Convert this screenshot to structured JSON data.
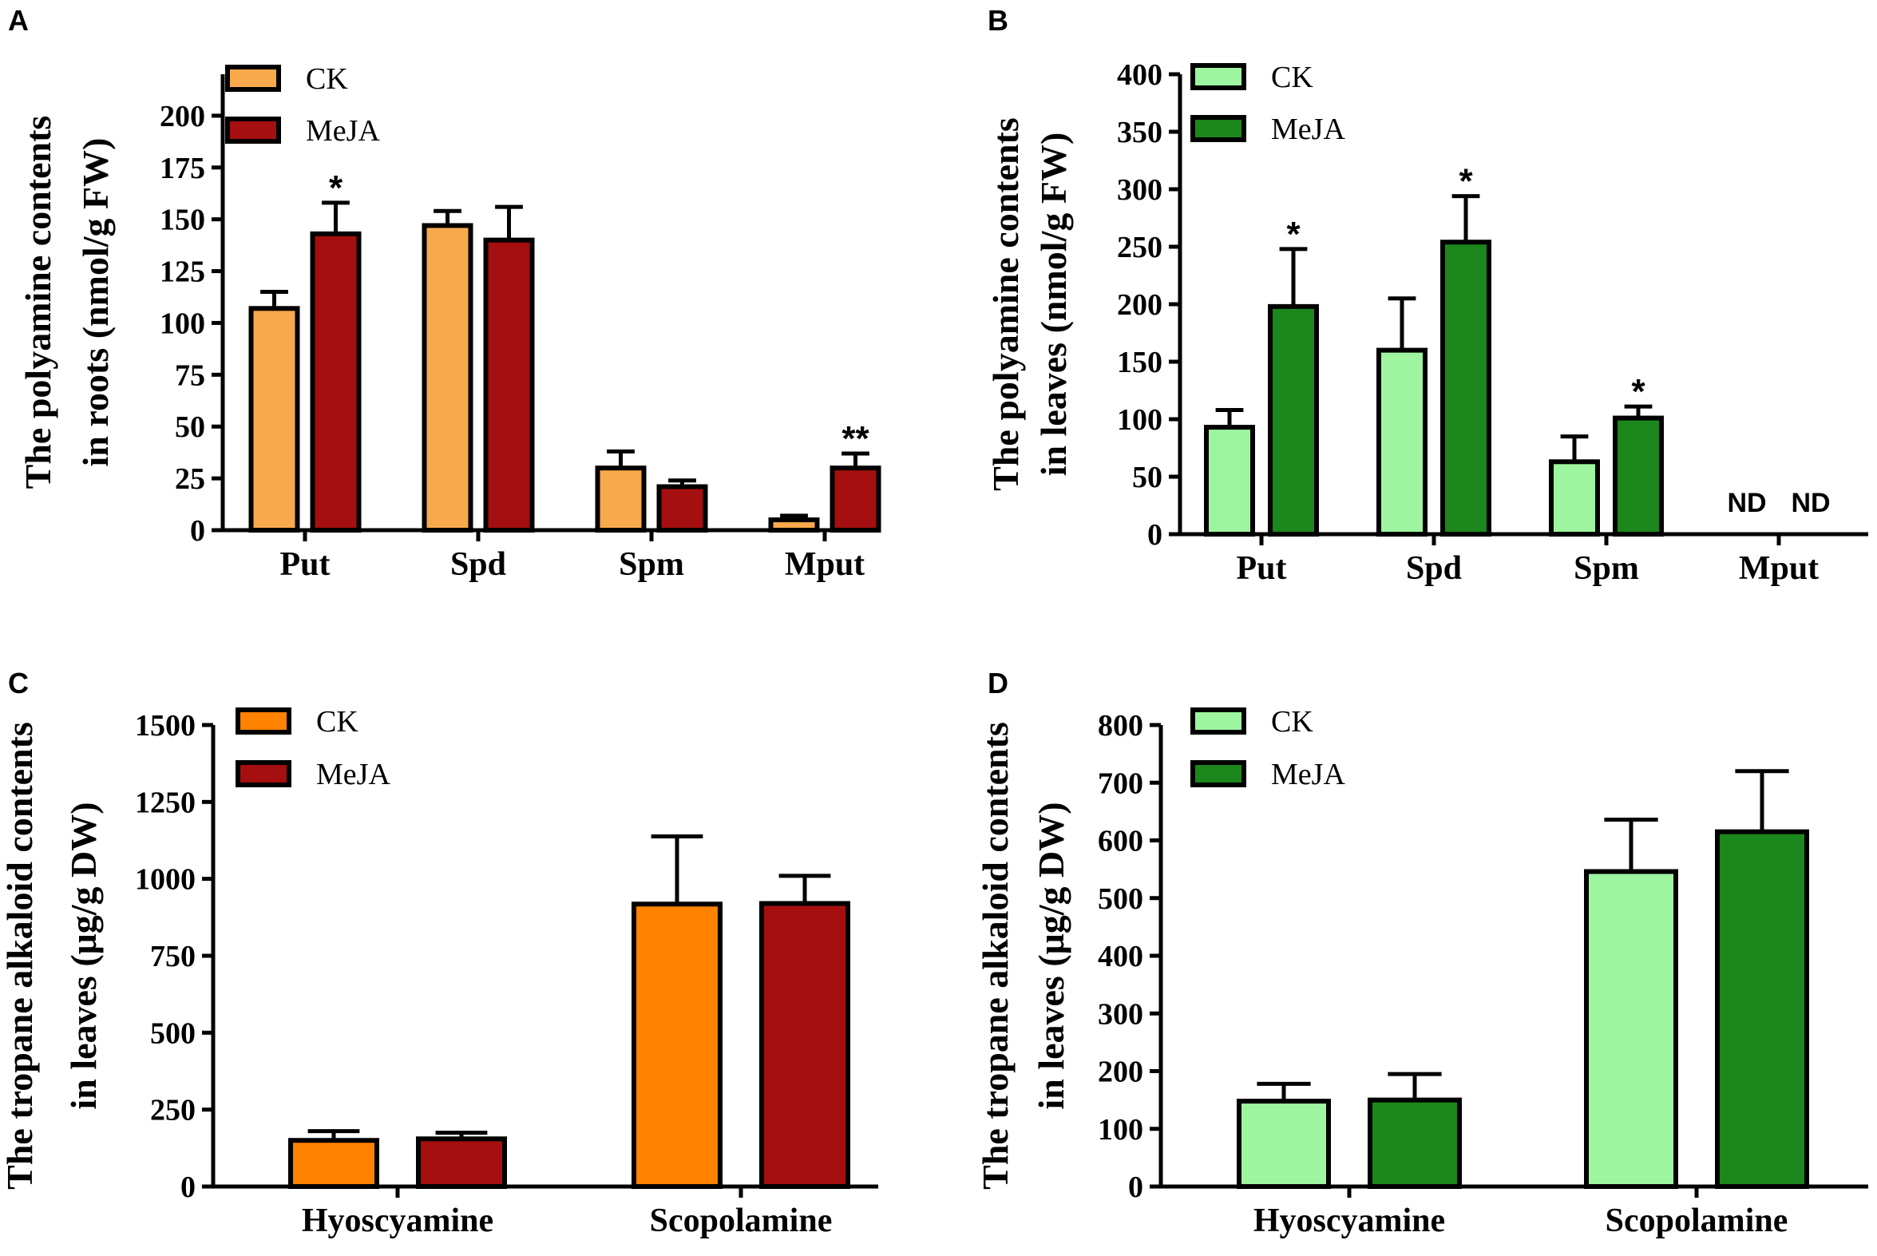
{
  "colors": {
    "ck_orange_light": "#F8A94B",
    "ck_orange": "#FF8200",
    "meja_red": "#A50F0F",
    "ck_green": "#9EF5A0",
    "meja_green": "#1C871C",
    "axis": "#000000"
  },
  "chart_data": [
    {
      "id": "A",
      "panel_label": "A",
      "type": "bar",
      "ylabel_lines": [
        "The polyamine contents",
        "in roots (nmol/g FW)"
      ],
      "ylim": [
        0,
        220
      ],
      "yticks": [
        0,
        25,
        50,
        75,
        100,
        125,
        150,
        175,
        200
      ],
      "categories": [
        "Put",
        "Spd",
        "Spm",
        "Mput"
      ],
      "series": [
        {
          "name": "CK",
          "color": "#F8A94B",
          "values": [
            107,
            147,
            30,
            5
          ],
          "errors": [
            8,
            7,
            8,
            2
          ]
        },
        {
          "name": "MeJA",
          "color": "#A50F0F",
          "values": [
            143,
            140,
            21,
            30
          ],
          "errors": [
            15,
            16,
            3,
            7
          ]
        }
      ],
      "annotations": [
        {
          "category": 0,
          "series": 1,
          "text": "*"
        },
        {
          "category": 3,
          "series": 1,
          "text": "**"
        }
      ],
      "nd_labels": []
    },
    {
      "id": "B",
      "panel_label": "B",
      "type": "bar",
      "ylabel_lines": [
        "The polyamine contents",
        "in leaves (nmol/g FW)"
      ],
      "ylim": [
        0,
        400
      ],
      "yticks": [
        0,
        50,
        100,
        150,
        200,
        250,
        300,
        350,
        400
      ],
      "categories": [
        "Put",
        "Spd",
        "Spm",
        "Mput"
      ],
      "series": [
        {
          "name": "CK",
          "color": "#9EF5A0",
          "values": [
            93,
            160,
            63,
            null
          ],
          "errors": [
            15,
            45,
            22,
            null
          ]
        },
        {
          "name": "MeJA",
          "color": "#1C871C",
          "values": [
            198,
            254,
            101,
            null
          ],
          "errors": [
            50,
            40,
            10,
            null
          ]
        }
      ],
      "annotations": [
        {
          "category": 0,
          "series": 1,
          "text": "*"
        },
        {
          "category": 1,
          "series": 1,
          "text": "*"
        },
        {
          "category": 2,
          "series": 1,
          "text": "*"
        }
      ],
      "nd_labels": [
        {
          "category": 3,
          "series": 0,
          "text": "ND"
        },
        {
          "category": 3,
          "series": 1,
          "text": "ND"
        }
      ]
    },
    {
      "id": "C",
      "panel_label": "C",
      "type": "bar",
      "ylabel_lines": [
        "The tropane alkaloid contents",
        "in leaves (μg/g DW)"
      ],
      "ylim": [
        0,
        1500
      ],
      "yticks": [
        0,
        250,
        500,
        750,
        1000,
        1250,
        1500
      ],
      "categories": [
        "Hyoscyamine",
        "Scopolamine"
      ],
      "series": [
        {
          "name": "CK",
          "color": "#FF8200",
          "values": [
            150,
            918
          ],
          "errors": [
            30,
            220
          ]
        },
        {
          "name": "MeJA",
          "color": "#A50F0F",
          "values": [
            155,
            920
          ],
          "errors": [
            20,
            90
          ]
        }
      ],
      "annotations": [],
      "nd_labels": []
    },
    {
      "id": "D",
      "panel_label": "D",
      "type": "bar",
      "ylabel_lines": [
        "The tropane alkaloid contents",
        "in leaves (μg/g DW)"
      ],
      "ylim": [
        0,
        800
      ],
      "yticks": [
        0,
        100,
        200,
        300,
        400,
        500,
        600,
        700,
        800
      ],
      "categories": [
        "Hyoscyamine",
        "Scopolamine"
      ],
      "series": [
        {
          "name": "CK",
          "color": "#9EF5A0",
          "values": [
            148,
            546
          ],
          "errors": [
            30,
            90
          ]
        },
        {
          "name": "MeJA",
          "color": "#1C871C",
          "values": [
            150,
            615
          ],
          "errors": [
            45,
            105
          ]
        }
      ],
      "annotations": [],
      "nd_labels": []
    }
  ]
}
